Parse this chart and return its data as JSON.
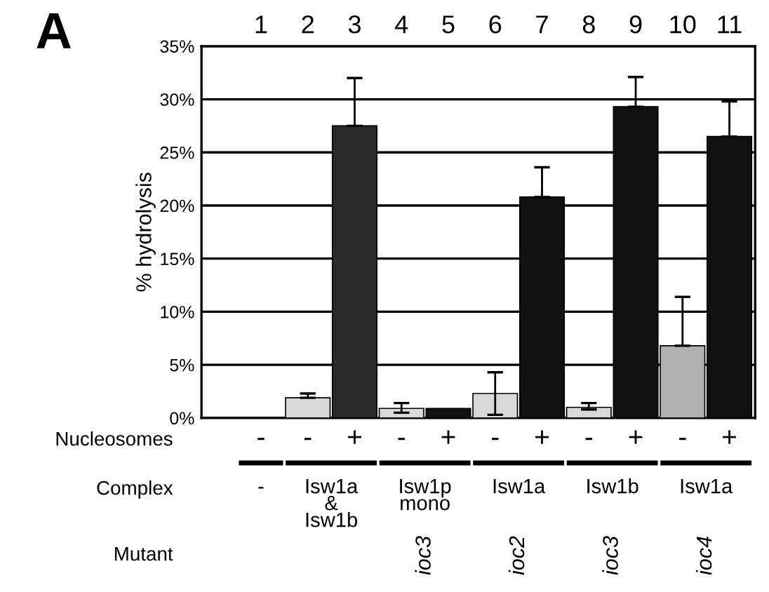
{
  "chart_data": {
    "type": "bar",
    "categories": [
      "1",
      "2",
      "3",
      "4",
      "5",
      "6",
      "7",
      "8",
      "9",
      "10",
      "11"
    ],
    "values": [
      null,
      1.9,
      27.5,
      0.9,
      0.9,
      2.3,
      20.8,
      1.0,
      29.3,
      6.8,
      26.5
    ],
    "colors": [
      "#d8d8d8",
      "#d8d8d8",
      "#2a2a2a",
      "#d8d8d8",
      "#111111",
      "#d8d8d8",
      "#111111",
      "#d8d8d8",
      "#111111",
      "#b0b0b0",
      "#111111"
    ],
    "errors": [
      null,
      [
        1.9,
        2.3
      ],
      [
        27.5,
        32
      ],
      [
        0.5,
        1.4
      ],
      null,
      [
        0.3,
        4.3
      ],
      [
        20.8,
        23.6
      ],
      [
        0.8,
        1.4
      ],
      [
        29.3,
        32.1
      ],
      [
        6.8,
        11.4
      ],
      [
        26.5,
        29.8
      ]
    ],
    "ylabel": "% hydrolysis",
    "ylim": [
      0,
      35
    ],
    "yticks": [
      {
        "value": 0,
        "label": "0%"
      },
      {
        "value": 5,
        "label": "5%"
      },
      {
        "value": 10,
        "label": "10%"
      },
      {
        "value": 15,
        "label": "15%"
      },
      {
        "value": 20,
        "label": "20%"
      },
      {
        "value": 25,
        "label": "25%"
      },
      {
        "value": 30,
        "label": "30%"
      },
      {
        "value": 35,
        "label": "35%"
      }
    ],
    "grid": "y",
    "annotations": [
      "A",
      "Nucleosomes",
      "-",
      "-",
      "+",
      "-",
      "+",
      "-",
      "+",
      "-",
      "+",
      "-",
      "+",
      "Complex",
      "-",
      "Isw1a\n&\nIsw1b",
      "Isw1p\nmono",
      "Isw1a",
      "Isw1b",
      "Isw1a",
      "Mutant",
      "ioc3",
      "ioc2",
      "ioc3",
      "ioc4"
    ]
  }
}
